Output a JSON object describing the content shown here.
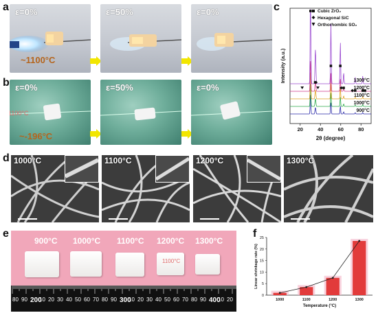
{
  "panels": {
    "a": "a",
    "b": "b",
    "c": "c",
    "d": "d",
    "e": "e",
    "f": "f"
  },
  "panel_a": {
    "strains": [
      "ε=0%",
      "ε=50%",
      "ε=0%"
    ],
    "temperature": "~1100°C"
  },
  "panel_b": {
    "strains": [
      "ε=0%",
      "ε=50%",
      "ε=0%"
    ],
    "temperature": "~-196°C",
    "faint_label": "1100°C"
  },
  "panel_d": {
    "labels": [
      "1000°C",
      "1100°C",
      "1200°C",
      "1300°C"
    ]
  },
  "panel_e": {
    "labels": [
      "900°C",
      "1000°C",
      "1100°C",
      "1200°C",
      "1300°C"
    ],
    "ruler_numbers": [
      "80",
      "90",
      "200",
      "10",
      "20",
      "30",
      "40",
      "50",
      "60",
      "70",
      "80",
      "90",
      "300",
      "10",
      "20",
      "30",
      "40",
      "50",
      "60",
      "70",
      "80",
      "90",
      "400",
      "10",
      "20"
    ],
    "faint_label": "1100°C"
  },
  "colors": {
    "bar": "#e23b3b",
    "xrd": [
      "#2a2aa8",
      "#2aa84a",
      "#e0a020",
      "#d03a8a",
      "#9a4ad0"
    ],
    "arrow": "#f2e600",
    "pink": "#f1a7ba"
  },
  "chart_data": [
    {
      "type": "line",
      "panel": "c",
      "xlabel": "2θ (degree)",
      "ylabel": "Intensity (a.u.)",
      "xlim": [
        10,
        90
      ],
      "xticks": [
        "20",
        "40",
        "60",
        "80"
      ],
      "legend": [
        "Cubic ZrO₂",
        "Hexagonal SiC",
        "Orthorhombic SO₂"
      ],
      "legend_markers": [
        "square",
        "diamond",
        "triangle-down"
      ],
      "legend_position": "top-right",
      "series": [
        {
          "name": "900°C",
          "color": "#2a2aa8"
        },
        {
          "name": "1000°C",
          "color": "#2aa84a"
        },
        {
          "name": "1100°C",
          "color": "#e0a020"
        },
        {
          "name": "1200°C",
          "color": "#d03a8a"
        },
        {
          "name": "1300°C",
          "color": "#9a4ad0"
        }
      ],
      "peaks": [
        {
          "x": 30.2,
          "height": 1.0
        },
        {
          "x": 34.8,
          "height": 0.22
        },
        {
          "x": 35.3,
          "height": 0.2
        },
        {
          "x": 50.3,
          "height": 0.55
        },
        {
          "x": 59.6,
          "height": 0.38
        },
        {
          "x": 62.9,
          "height": 0.1
        },
        {
          "x": 74.3,
          "height": 0.06
        },
        {
          "x": 81.7,
          "height": 0.07
        }
      ],
      "markers": [
        {
          "x": 30.2,
          "symbol": "square",
          "level": "top"
        },
        {
          "x": 50.3,
          "symbol": "square",
          "level": "mid"
        },
        {
          "x": 59.6,
          "symbol": "square",
          "level": "mid"
        },
        {
          "x": 34.8,
          "symbol": "square",
          "level": "low"
        },
        {
          "x": 35.6,
          "symbol": "diamond",
          "level": "low"
        },
        {
          "x": 37.5,
          "symbol": "triangle-down",
          "level": "low2"
        },
        {
          "x": 22.0,
          "symbol": "triangle-down",
          "level": "low2"
        },
        {
          "x": 60.5,
          "symbol": "diamond",
          "level": "low2"
        },
        {
          "x": 62.9,
          "symbol": "square",
          "level": "low2"
        },
        {
          "x": 71.5,
          "symbol": "diamond",
          "level": "low3"
        },
        {
          "x": 74.3,
          "symbol": "square",
          "level": "low3"
        },
        {
          "x": 81.7,
          "symbol": "square",
          "level": "low3"
        },
        {
          "x": 84.0,
          "symbol": "square",
          "level": "low3"
        }
      ]
    },
    {
      "type": "bar",
      "panel": "f",
      "categories": [
        "1000",
        "1100",
        "1200",
        "1300"
      ],
      "values": [
        1,
        3.5,
        7.5,
        23.5
      ],
      "xlabel": "Temperature (°C)",
      "ylabel": "Linear shrinkage rate (%)",
      "ylim": [
        0,
        25
      ],
      "yticks": [
        "0",
        "5",
        "10",
        "15",
        "20",
        "25"
      ],
      "overlay_line": true
    }
  ]
}
